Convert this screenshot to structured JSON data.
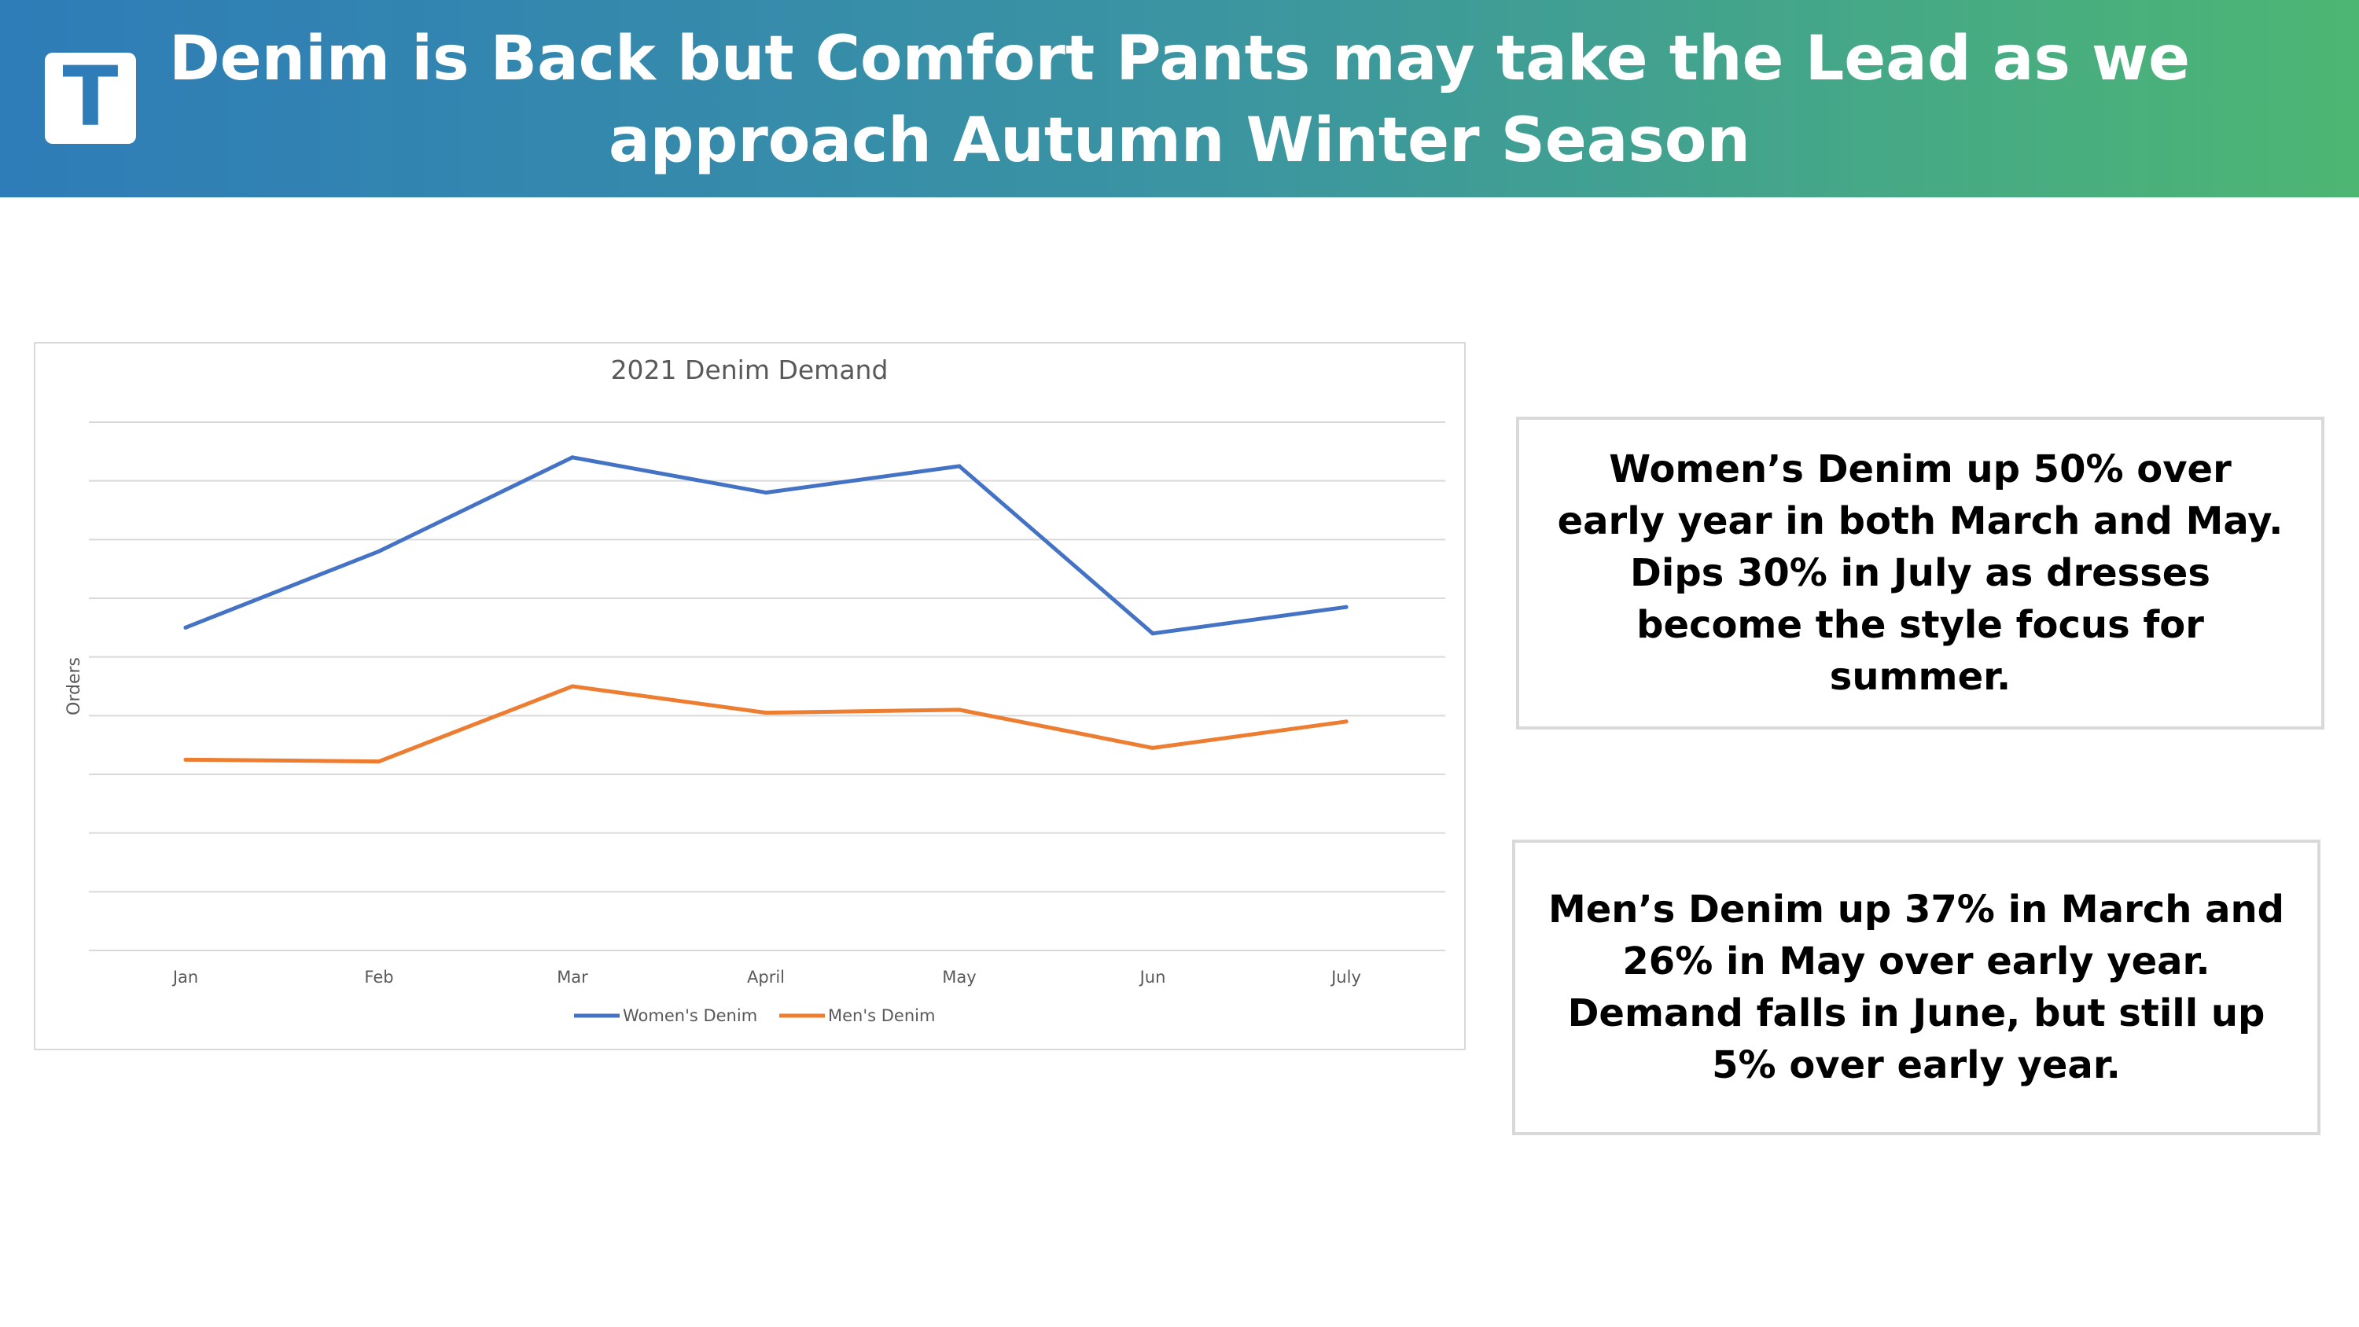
{
  "header": {
    "logo_letter": "T",
    "title": "Denim is Back but Comfort Pants may take the Lead as we approach Autumn Winter Season"
  },
  "callouts": {
    "women": "Women’s Denim up 50% over early year in both March and May. Dips 30% in July as dresses become the style focus for summer.",
    "men": "Men’s Denim up 37% in March and 26% in May over early year. Demand falls in June, but still up 5% over early year."
  },
  "colors": {
    "women": "#4472c4",
    "men": "#ed7d31",
    "gridline": "#d9d9d9"
  },
  "chart_data": {
    "type": "line",
    "title": "2021 Denim Demand",
    "xlabel": "",
    "ylabel": "Orders",
    "categories": [
      "Jan",
      "Feb",
      "Mar",
      "April",
      "May",
      "Jun",
      "July"
    ],
    "series": [
      {
        "name": "Women's Denim",
        "values": [
          55,
          68,
          84,
          78,
          82.5,
          54,
          58.5
        ]
      },
      {
        "name": "Men's Denim",
        "values": [
          32.5,
          32.2,
          45,
          40.5,
          41,
          34.5,
          39
        ]
      }
    ],
    "ylim": [
      0,
      90
    ],
    "y_tick_labels_shown": false,
    "grid": true,
    "legend": "bottom"
  }
}
